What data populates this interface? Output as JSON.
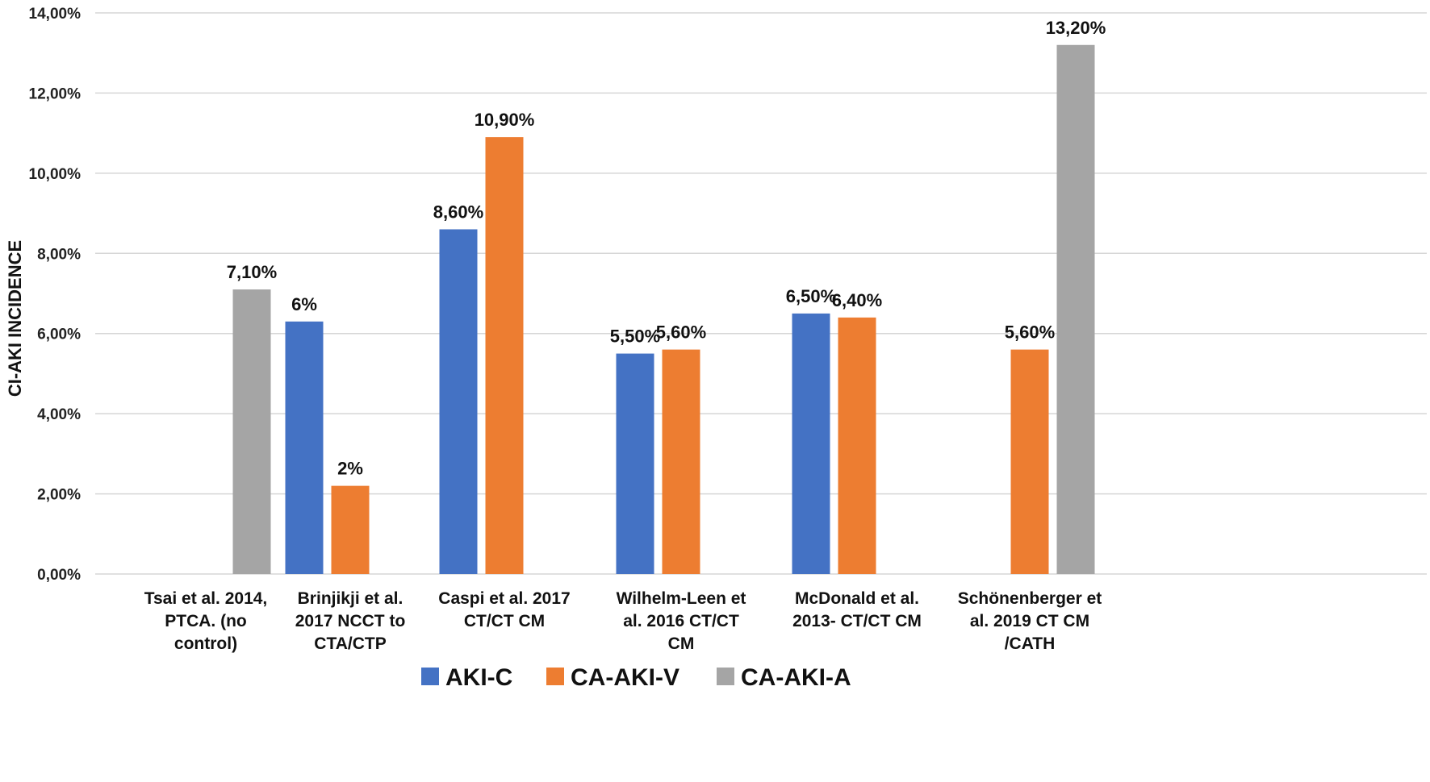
{
  "chart_data": {
    "type": "bar",
    "title": "",
    "xlabel": "",
    "ylabel": "CI-AKI INCIDENCE",
    "ylim": [
      0,
      14
    ],
    "yticks": [
      {
        "value": 0,
        "label": "0,00%"
      },
      {
        "value": 2,
        "label": "2,00%"
      },
      {
        "value": 4,
        "label": "4,00%"
      },
      {
        "value": 6,
        "label": "6,00%"
      },
      {
        "value": 8,
        "label": "8,00%"
      },
      {
        "value": 10,
        "label": "10,00%"
      },
      {
        "value": 12,
        "label": "12,00%"
      },
      {
        "value": 14,
        "label": "14,00%"
      }
    ],
    "grid": true,
    "legend_position": "bottom",
    "categories": [
      {
        "lines": [
          "Tsai et al. 2014,",
          "PTCA. (no",
          "control)"
        ]
      },
      {
        "lines": [
          "Brinjikji et al.",
          "2017 NCCT to",
          "CTA/CTP"
        ]
      },
      {
        "lines": [
          "Caspi et al. 2017",
          "CT/CT CM"
        ]
      },
      {
        "lines": [
          "Wilhelm-Leen et",
          "al. 2016 CT/CT",
          "CM"
        ]
      },
      {
        "lines": [
          "McDonald et al.",
          "2013- CT/CT CM"
        ]
      },
      {
        "lines": [
          "Schönenberger et",
          "al. 2019 CT CM",
          "/CATH"
        ]
      }
    ],
    "series": [
      {
        "name": "AKI-C",
        "color": "#4472C4",
        "values": [
          null,
          6.3,
          8.6,
          5.5,
          6.5,
          null
        ],
        "labels": [
          null,
          "6%",
          "8,60%",
          "5,50%",
          "6,50%",
          null
        ]
      },
      {
        "name": "CA-AKI-V",
        "color": "#ED7D31",
        "values": [
          null,
          2.2,
          10.9,
          5.6,
          6.4,
          5.6
        ],
        "labels": [
          null,
          "2%",
          "10,90%",
          "5,60%",
          "6,40%",
          "5,60%"
        ]
      },
      {
        "name": "CA-AKI-A",
        "color": "#A5A5A5",
        "values": [
          7.1,
          null,
          null,
          null,
          null,
          13.2
        ],
        "labels": [
          "7,10%",
          null,
          null,
          null,
          null,
          "13,20%"
        ]
      }
    ]
  }
}
